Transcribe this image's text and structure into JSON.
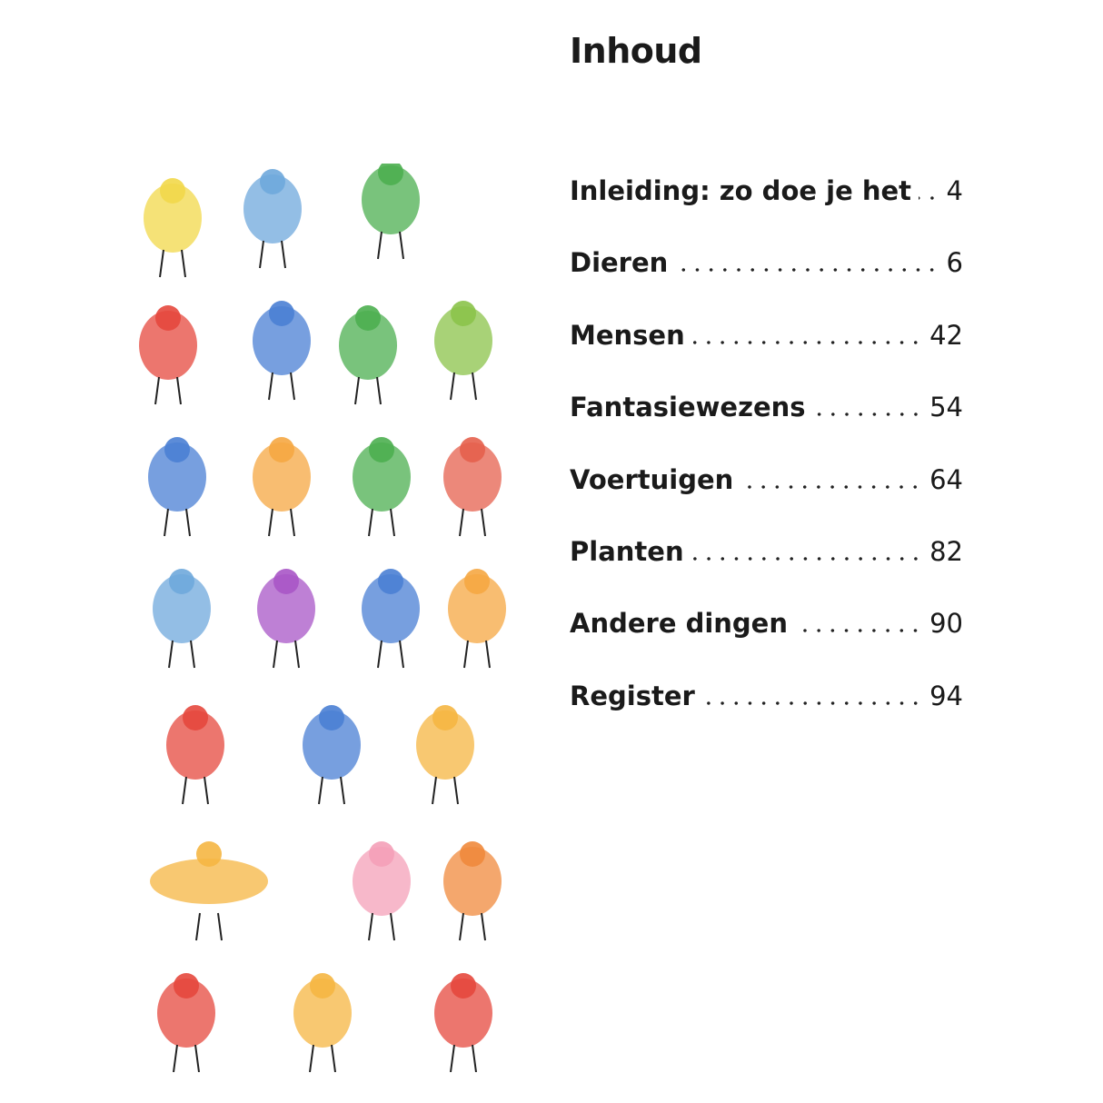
{
  "page": {
    "title": "Inhoud"
  },
  "toc": [
    {
      "label": "Inleiding: zo doe je het",
      "page": "4"
    },
    {
      "label": "Dieren",
      "page": "6"
    },
    {
      "label": "Mensen",
      "page": "42"
    },
    {
      "label": "Fantasiewezens",
      "page": "54"
    },
    {
      "label": "Voertuigen",
      "page": "64"
    },
    {
      "label": "Planten",
      "page": "82"
    },
    {
      "label": "Andere dingen",
      "page": "90"
    },
    {
      "label": "Register",
      "page": "94"
    }
  ],
  "illustrations": [
    {
      "icon": "lion-icon",
      "color": "#f2d84a"
    },
    {
      "icon": "hippo-icon",
      "color": "#6fa8dc"
    },
    {
      "icon": "chameleon-icon",
      "color": "#4caf50"
    },
    {
      "icon": "ladybug-icon",
      "color": "#e5483d"
    },
    {
      "icon": "rocket-icon",
      "color": "#4a7fd4"
    },
    {
      "icon": "seahorse-icon",
      "color": "#4caf50"
    },
    {
      "icon": "dinosaur-icon",
      "color": "#8bc34a"
    },
    {
      "icon": "farmer-icon",
      "color": "#4a7fd4"
    },
    {
      "icon": "meerkat-icon",
      "color": "#f5a742"
    },
    {
      "icon": "hiker-icon",
      "color": "#4caf50"
    },
    {
      "icon": "king-icon",
      "color": "#e5604d"
    },
    {
      "icon": "astronaut-icon",
      "color": "#6fa8dc"
    },
    {
      "icon": "koala-icon",
      "color": "#a855c7"
    },
    {
      "icon": "hot-air-balloon-icon",
      "color": "#4a7fd4"
    },
    {
      "icon": "cat-icon",
      "color": "#f5a742"
    },
    {
      "icon": "devil-icon",
      "color": "#e5483d"
    },
    {
      "icon": "queen-icon",
      "color": "#4a7fd4"
    },
    {
      "icon": "cupid-icon",
      "color": "#f5b642"
    },
    {
      "icon": "tow-truck-icon",
      "color": "#f5b642"
    },
    {
      "icon": "flower-icon",
      "color": "#f4a0b8"
    },
    {
      "icon": "pear-icon",
      "color": "#f08a3c"
    },
    {
      "icon": "cherries-basket-icon",
      "color": "#e5483d"
    },
    {
      "icon": "house-icon",
      "color": "#f5b642"
    },
    {
      "icon": "roadwork-sign-icon",
      "color": "#e5483d"
    }
  ]
}
